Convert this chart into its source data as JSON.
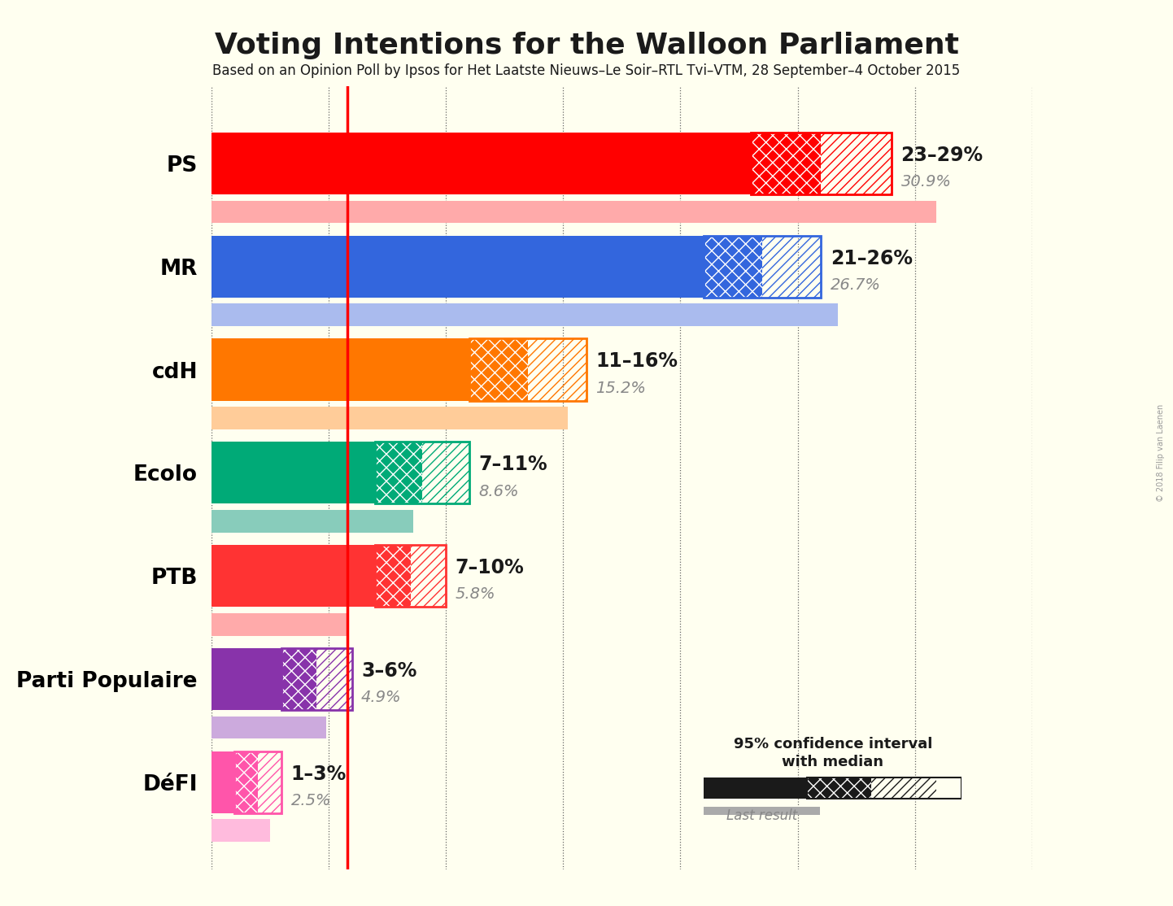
{
  "title": "Voting Intentions for the Walloon Parliament",
  "subtitle": "Based on an Opinion Poll by Ipsos for Het Laatste Nieuws–Le Soir–RTL Tvi–VTM, 28 September–4 October 2015",
  "copyright": "© 2018 Filip van Laenen",
  "background_color": "#FFFFF0",
  "parties": [
    "PS",
    "MR",
    "cdH",
    "Ecolo",
    "PTB",
    "Parti Populaire",
    "DéFI"
  ],
  "colors": [
    "#FF0000",
    "#3366DD",
    "#FF7700",
    "#00AA77",
    "#FF3333",
    "#8833AA",
    "#FF55AA"
  ],
  "light_colors": [
    "#FFAAAA",
    "#AABBEE",
    "#FFCC99",
    "#88CCBB",
    "#FFAAAA",
    "#CCAADD",
    "#FFBBDD"
  ],
  "ci_low": [
    23,
    21,
    11,
    7,
    7,
    3,
    1
  ],
  "ci_high": [
    29,
    26,
    16,
    11,
    10,
    6,
    3
  ],
  "median": [
    26,
    23.5,
    13.5,
    9,
    8.5,
    4.5,
    2
  ],
  "last_result": [
    30.9,
    26.7,
    15.2,
    8.6,
    5.8,
    4.9,
    2.5
  ],
  "ci_label": [
    "23–29%",
    "21–26%",
    "11–16%",
    "7–11%",
    "7–10%",
    "3–6%",
    "1–3%"
  ],
  "last_result_label": [
    "30.9%",
    "26.7%",
    "15.2%",
    "8.6%",
    "5.8%",
    "4.9%",
    "2.5%"
  ],
  "red_line_x": 5.8,
  "xlim": [
    0,
    35
  ],
  "figsize": [
    14.42,
    11.14
  ]
}
